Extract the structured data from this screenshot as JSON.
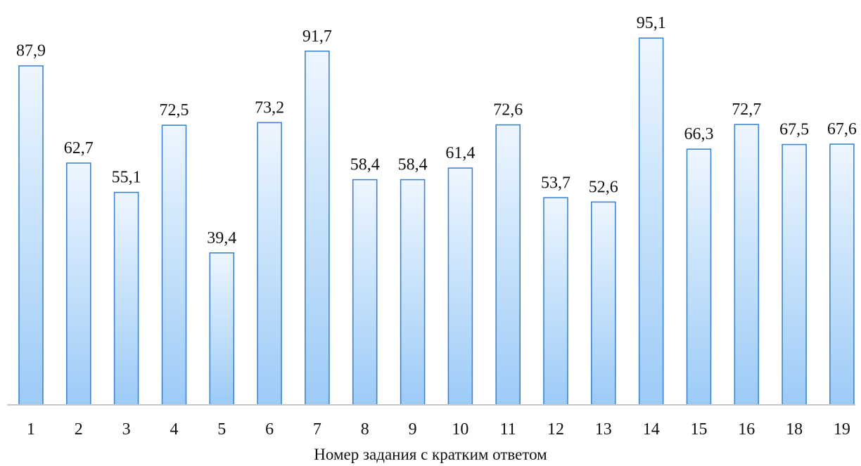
{
  "chart_data": {
    "type": "bar",
    "categories": [
      "1",
      "2",
      "3",
      "4",
      "5",
      "6",
      "7",
      "8",
      "9",
      "10",
      "11",
      "12",
      "13",
      "14",
      "15",
      "16",
      "18",
      "19"
    ],
    "value_labels": [
      "87,9",
      "62,7",
      "55,1",
      "72,5",
      "39,4",
      "73,2",
      "91,7",
      "58,4",
      "58,4",
      "61,4",
      "72,6",
      "53,7",
      "52,6",
      "95,1",
      "66,3",
      "72,7",
      "67,5",
      "67,6"
    ],
    "values": [
      87.9,
      62.7,
      55.1,
      72.5,
      39.4,
      73.2,
      91.7,
      58.4,
      58.4,
      61.4,
      72.6,
      53.7,
      52.6,
      95.1,
      66.3,
      72.7,
      67.5,
      67.6
    ],
    "title": "",
    "xlabel": "Номер задания с кратким ответом",
    "ylabel": "",
    "ylim": [
      0,
      100
    ],
    "grid": false,
    "data_labels": true,
    "colors": {
      "bar_top": "#eef6ff",
      "bar_bottom": "#9ccbf7",
      "bar_stroke": "#3d86cf",
      "axis": "#c8c8c8"
    }
  }
}
